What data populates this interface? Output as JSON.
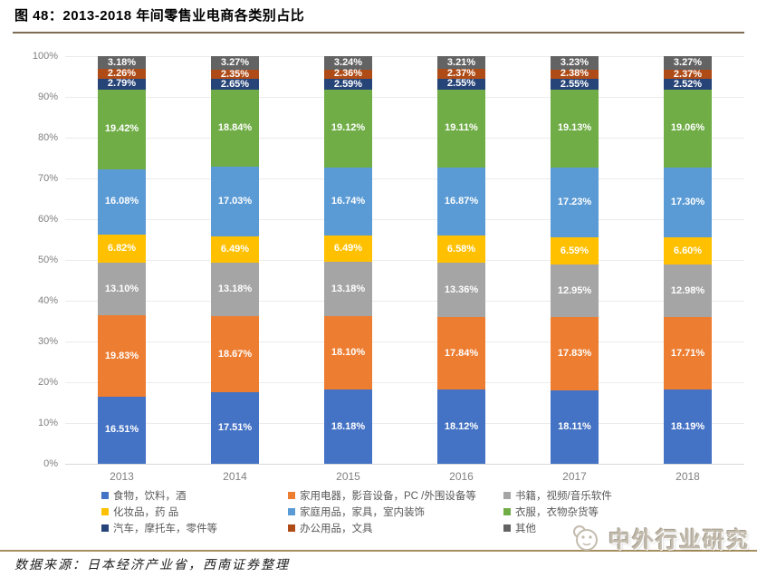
{
  "header": {
    "title": "图 48：2013-2018 年间零售业电商各类别占比"
  },
  "chart_data": {
    "type": "bar",
    "stacked": true,
    "title": "2013-2018 年间零售业电商各类别占比",
    "categories": [
      "2013",
      "2014",
      "2015",
      "2016",
      "2017",
      "2018"
    ],
    "yticks": [
      "0%",
      "10%",
      "20%",
      "30%",
      "40%",
      "50%",
      "60%",
      "70%",
      "80%",
      "90%",
      "100%"
    ],
    "ylim": [
      0,
      100
    ],
    "grid": true,
    "legend_position": "bottom",
    "value_suffix": "%",
    "series": [
      {
        "name": "食物，饮料，酒",
        "color": "#4472C4",
        "values": [
          16.51,
          17.51,
          18.18,
          18.12,
          18.11,
          18.19
        ]
      },
      {
        "name": "家用电器，影音设备，PC /外围设备等",
        "color": "#ED7D31",
        "values": [
          19.83,
          18.67,
          18.1,
          17.84,
          17.83,
          17.71
        ]
      },
      {
        "name": "书籍，视频/音乐软件",
        "color": "#A5A5A5",
        "values": [
          13.1,
          13.18,
          13.18,
          13.36,
          12.95,
          12.98
        ]
      },
      {
        "name": "化妆品，药 品",
        "color": "#FFC000",
        "values": [
          6.82,
          6.49,
          6.49,
          6.58,
          6.59,
          6.6
        ]
      },
      {
        "name": "家庭用品，家具，室内装饰",
        "color": "#5B9BD5",
        "values": [
          16.08,
          17.03,
          16.74,
          16.87,
          17.23,
          17.3
        ]
      },
      {
        "name": "衣服，衣物杂货等",
        "color": "#70AD47",
        "values": [
          19.42,
          18.84,
          19.12,
          19.11,
          19.13,
          19.06
        ]
      },
      {
        "name": "汽车，摩托车，零件等",
        "color": "#264478",
        "values": [
          2.79,
          2.65,
          2.59,
          2.55,
          2.55,
          2.52
        ]
      },
      {
        "name": "办公用品，文具",
        "color": "#AF4B16",
        "values": [
          2.26,
          2.35,
          2.36,
          2.37,
          2.38,
          2.37
        ]
      },
      {
        "name": "其他",
        "color": "#636363",
        "values": [
          3.18,
          3.27,
          3.24,
          3.21,
          3.23,
          3.27
        ]
      }
    ]
  },
  "footer": {
    "source_note": "数据来源：日本经济产业省，西南证券整理",
    "watermark_text": "中外行业研究"
  },
  "colors": {
    "title_rule": "#7E6C55",
    "footer_rule": "#A68F5F",
    "axis_text": "#808080",
    "legend_text": "#595959",
    "bar_label": "#FFFFFF"
  }
}
